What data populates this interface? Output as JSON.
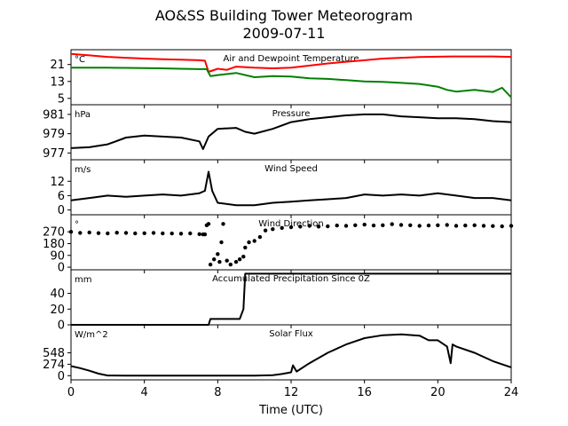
{
  "figure": {
    "title": "AO&SS Building Tower Meteorogram",
    "subtitle": "2009-07-11",
    "xlabel": "Time (UTC)"
  },
  "chart_data": [
    {
      "type": "line",
      "title": "Air and Dewpoint Temperature",
      "unit_label": "°C",
      "xlim": [
        0,
        24
      ],
      "ylim": [
        2,
        28
      ],
      "yticks": [
        5,
        13,
        21
      ],
      "xticks": [
        0,
        4,
        8,
        12,
        16,
        20,
        24
      ],
      "series": [
        {
          "color": "#ff0000",
          "points": [
            [
              0,
              26
            ],
            [
              1,
              25.3
            ],
            [
              2,
              24.6
            ],
            [
              3,
              24.2
            ],
            [
              4,
              23.8
            ],
            [
              5,
              23.5
            ],
            [
              6,
              23.3
            ],
            [
              7,
              23
            ],
            [
              7.3,
              22.8
            ],
            [
              7.5,
              17.5
            ],
            [
              8,
              19
            ],
            [
              8.5,
              18.5
            ],
            [
              9,
              20
            ],
            [
              10,
              19.5
            ],
            [
              11,
              19.2
            ],
            [
              12,
              19.5
            ],
            [
              13,
              20.5
            ],
            [
              14,
              21.5
            ],
            [
              15,
              22.3
            ],
            [
              16,
              23
            ],
            [
              17,
              23.8
            ],
            [
              18,
              24.2
            ],
            [
              19,
              24.5
            ],
            [
              20,
              24.7
            ],
            [
              21,
              24.8
            ],
            [
              22,
              24.8
            ],
            [
              23,
              24.8
            ],
            [
              24,
              24.6
            ]
          ]
        },
        {
          "color": "#008000",
          "points": [
            [
              0,
              19.5
            ],
            [
              1,
              19.5
            ],
            [
              2,
              19.5
            ],
            [
              3,
              19.4
            ],
            [
              4,
              19.3
            ],
            [
              5,
              19.2
            ],
            [
              6,
              19
            ],
            [
              7,
              18.8
            ],
            [
              7.4,
              18.8
            ],
            [
              7.6,
              15.5
            ],
            [
              8,
              16
            ],
            [
              9,
              17
            ],
            [
              10,
              15
            ],
            [
              11,
              15.5
            ],
            [
              12,
              15.3
            ],
            [
              13,
              14.5
            ],
            [
              14,
              14.2
            ],
            [
              15,
              13.6
            ],
            [
              16,
              13
            ],
            [
              17,
              12.8
            ],
            [
              18,
              12.3
            ],
            [
              19,
              11.8
            ],
            [
              20,
              10.5
            ],
            [
              20.5,
              9
            ],
            [
              21,
              8.2
            ],
            [
              22,
              9
            ],
            [
              23,
              8
            ],
            [
              23.5,
              10
            ],
            [
              24,
              5.5
            ]
          ]
        }
      ]
    },
    {
      "type": "line",
      "title": "Pressure",
      "unit_label": "hPa",
      "xlim": [
        0,
        24
      ],
      "ylim": [
        976.3,
        982
      ],
      "yticks": [
        977,
        979,
        981
      ],
      "xticks": [
        0,
        4,
        8,
        12,
        16,
        20,
        24
      ],
      "series": [
        {
          "color": "#000000",
          "points": [
            [
              0,
              977.5
            ],
            [
              1,
              977.6
            ],
            [
              2,
              977.9
            ],
            [
              3,
              978.6
            ],
            [
              4,
              978.8
            ],
            [
              5,
              978.7
            ],
            [
              6,
              978.6
            ],
            [
              7,
              978.2
            ],
            [
              7.2,
              977.4
            ],
            [
              7.5,
              978.7
            ],
            [
              8,
              979.5
            ],
            [
              9,
              979.6
            ],
            [
              9.5,
              979.2
            ],
            [
              10,
              979
            ],
            [
              11,
              979.5
            ],
            [
              12,
              980.2
            ],
            [
              13,
              980.5
            ],
            [
              14,
              980.7
            ],
            [
              15,
              980.9
            ],
            [
              16,
              981
            ],
            [
              17,
              981
            ],
            [
              18,
              980.8
            ],
            [
              19,
              980.7
            ],
            [
              20,
              980.6
            ],
            [
              21,
              980.6
            ],
            [
              22,
              980.5
            ],
            [
              23,
              980.3
            ],
            [
              24,
              980.2
            ]
          ]
        }
      ]
    },
    {
      "type": "line",
      "title": "Wind Speed",
      "unit_label": "m/s",
      "xlim": [
        0,
        24
      ],
      "ylim": [
        -2,
        21
      ],
      "yticks": [
        0,
        6,
        12
      ],
      "xticks": [
        0,
        4,
        8,
        12,
        16,
        20,
        24
      ],
      "series": [
        {
          "color": "#000000",
          "points": [
            [
              0,
              4
            ],
            [
              1,
              5
            ],
            [
              2,
              6
            ],
            [
              3,
              5.5
            ],
            [
              4,
              6
            ],
            [
              5,
              6.5
            ],
            [
              6,
              6
            ],
            [
              7,
              7
            ],
            [
              7.3,
              8
            ],
            [
              7.5,
              16
            ],
            [
              7.7,
              8
            ],
            [
              8,
              3
            ],
            [
              9,
              2
            ],
            [
              10,
              2
            ],
            [
              11,
              3
            ],
            [
              12,
              3.5
            ],
            [
              13,
              4
            ],
            [
              14,
              4.5
            ],
            [
              15,
              5
            ],
            [
              16,
              6.5
            ],
            [
              17,
              6
            ],
            [
              18,
              6.5
            ],
            [
              19,
              6
            ],
            [
              20,
              7
            ],
            [
              21,
              6
            ],
            [
              22,
              5
            ],
            [
              23,
              5
            ],
            [
              24,
              4
            ]
          ]
        }
      ]
    },
    {
      "type": "scatter",
      "title": "Wind Direction",
      "unit_label": "°",
      "xlim": [
        0,
        24
      ],
      "ylim": [
        -20,
        400
      ],
      "yticks": [
        0,
        90,
        180,
        270
      ],
      "xticks": [
        0,
        4,
        8,
        12,
        16,
        20,
        24
      ],
      "series": [
        {
          "color": "#000000",
          "points": [
            [
              0,
              270
            ],
            [
              0.5,
              262
            ],
            [
              1,
              265
            ],
            [
              1.5,
              260
            ],
            [
              2,
              258
            ],
            [
              2.5,
              263
            ],
            [
              3,
              262
            ],
            [
              3.5,
              258
            ],
            [
              4,
              259
            ],
            [
              4.5,
              262
            ],
            [
              5,
              258
            ],
            [
              5.5,
              257
            ],
            [
              6,
              256
            ],
            [
              6.5,
              258
            ],
            [
              7,
              252
            ],
            [
              7.2,
              250
            ],
            [
              7.3,
              250
            ],
            [
              7.4,
              320
            ],
            [
              7.5,
              330
            ],
            [
              7.6,
              20
            ],
            [
              7.8,
              60
            ],
            [
              8,
              100
            ],
            [
              8.1,
              40
            ],
            [
              8.2,
              190
            ],
            [
              8.3,
              330
            ],
            [
              8.5,
              50
            ],
            [
              8.7,
              20
            ],
            [
              9,
              40
            ],
            [
              9.2,
              60
            ],
            [
              9.4,
              80
            ],
            [
              9.5,
              150
            ],
            [
              9.7,
              190
            ],
            [
              10,
              200
            ],
            [
              10.3,
              230
            ],
            [
              10.6,
              280
            ],
            [
              11,
              290
            ],
            [
              11.5,
              300
            ],
            [
              12,
              305
            ],
            [
              12.5,
              310
            ],
            [
              13,
              315
            ],
            [
              13.5,
              310
            ],
            [
              14,
              312
            ],
            [
              14.5,
              318
            ],
            [
              15,
              315
            ],
            [
              15.5,
              320
            ],
            [
              16,
              325
            ],
            [
              16.5,
              318
            ],
            [
              17,
              320
            ],
            [
              17.5,
              328
            ],
            [
              18,
              322
            ],
            [
              18.5,
              320
            ],
            [
              19,
              315
            ],
            [
              19.5,
              318
            ],
            [
              20,
              320
            ],
            [
              20.5,
              322
            ],
            [
              21,
              315
            ],
            [
              21.5,
              318
            ],
            [
              22,
              320
            ],
            [
              22.5,
              316
            ],
            [
              23,
              314
            ],
            [
              23.5,
              312
            ],
            [
              24,
              315
            ]
          ]
        }
      ]
    },
    {
      "type": "line",
      "title": "Accumulated Precipitation Since 0Z",
      "unit_label": "mm",
      "xlim": [
        0,
        24
      ],
      "ylim": [
        0,
        70
      ],
      "yticks": [
        0,
        20,
        40
      ],
      "xticks": [
        0,
        4,
        8,
        12,
        16,
        20,
        24
      ],
      "series": [
        {
          "color": "#000000",
          "points": [
            [
              0,
              0
            ],
            [
              7.5,
              0
            ],
            [
              7.6,
              7.5
            ],
            [
              9.2,
              7.5
            ],
            [
              9.4,
              20
            ],
            [
              9.5,
              65
            ],
            [
              24,
              65
            ]
          ]
        }
      ]
    },
    {
      "type": "line",
      "title": "Solar Flux",
      "unit_label": "W/m^2",
      "xlim": [
        0,
        24
      ],
      "ylim": [
        -100,
        1220
      ],
      "yticks": [
        0,
        274,
        548
      ],
      "xticks": [
        0,
        4,
        8,
        12,
        16,
        20,
        24
      ],
      "series": [
        {
          "color": "#000000",
          "points": [
            [
              0,
              230
            ],
            [
              0.5,
              180
            ],
            [
              1,
              120
            ],
            [
              1.5,
              50
            ],
            [
              2,
              5
            ],
            [
              3,
              0
            ],
            [
              10,
              0
            ],
            [
              11,
              10
            ],
            [
              11.5,
              40
            ],
            [
              12,
              80
            ],
            [
              12.1,
              250
            ],
            [
              12.3,
              100
            ],
            [
              13,
              300
            ],
            [
              14,
              550
            ],
            [
              15,
              750
            ],
            [
              16,
              900
            ],
            [
              17,
              970
            ],
            [
              18,
              990
            ],
            [
              19,
              960
            ],
            [
              19.5,
              850
            ],
            [
              20,
              850
            ],
            [
              20.5,
              700
            ],
            [
              20.7,
              300
            ],
            [
              20.8,
              750
            ],
            [
              21,
              700
            ],
            [
              22,
              550
            ],
            [
              23,
              350
            ],
            [
              24,
              200
            ]
          ]
        }
      ]
    }
  ]
}
